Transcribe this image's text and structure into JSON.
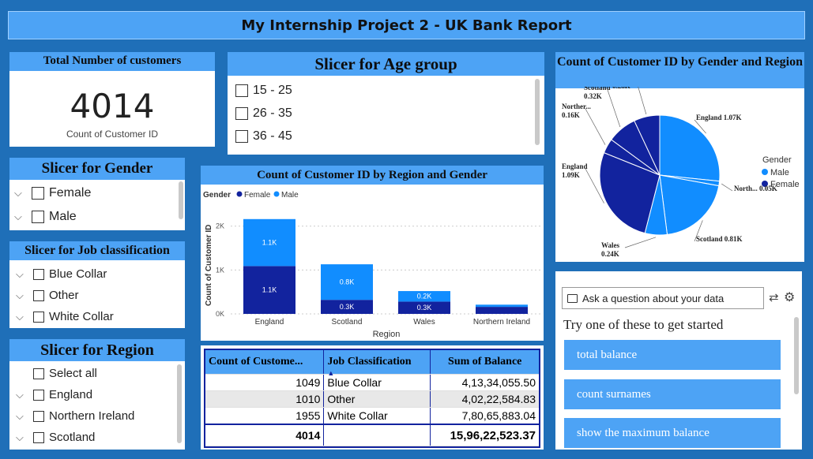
{
  "title": "My Internship Project 2 - UK Bank Report",
  "card": {
    "header": "Total Number of customers",
    "value": "4014",
    "label": "Count of Customer ID"
  },
  "age_slicer": {
    "header": "Slicer for Age group",
    "items": [
      "15 - 25",
      "26 - 35",
      "36 - 45"
    ]
  },
  "gender_slicer": {
    "header": "Slicer for Gender",
    "items": [
      "Female",
      "Male"
    ]
  },
  "job_slicer": {
    "header": "Slicer for Job classification",
    "items": [
      "Blue Collar",
      "Other",
      "White Collar"
    ]
  },
  "region_slicer": {
    "header": "Slicer for Region",
    "items": [
      "Select all",
      "England",
      "Northern Ireland",
      "Scotland"
    ]
  },
  "bar_chart": {
    "title": "Count of Customer ID by Region and Gender",
    "legend_title": "Gender",
    "ylabel": "Count of Customer ID",
    "xlabel": "Region",
    "y_ticks": [
      "2K",
      "1K",
      "0K"
    ],
    "colors": {
      "Female": "#12239e",
      "Male": "#118dff"
    }
  },
  "chart_data": [
    {
      "type": "bar",
      "title": "Count of Customer ID by Region and Gender",
      "xlabel": "Region",
      "ylabel": "Count of Customer ID",
      "categories": [
        "England",
        "Scotland",
        "Wales",
        "Northern Ireland"
      ],
      "series": [
        {
          "name": "Female",
          "values": [
            1090,
            320,
            280,
            160
          ],
          "labels": [
            "1.1K",
            "0.3K",
            "0.3K",
            ""
          ]
        },
        {
          "name": "Male",
          "values": [
            1070,
            810,
            240,
            50
          ],
          "labels": [
            "1.1K",
            "0.8K",
            "0.2K",
            ""
          ]
        }
      ],
      "ylim": [
        0,
        2300
      ],
      "legend": "top-left"
    },
    {
      "type": "pie",
      "title": "Count of Customer ID by Gender and Region",
      "slices": [
        {
          "label": "England",
          "gender": "Male",
          "value": 1070,
          "text": "England 1.07K"
        },
        {
          "label": "North...",
          "gender": "Male",
          "value": 50,
          "text": "North... 0.05K"
        },
        {
          "label": "Scotland",
          "gender": "Male",
          "value": 810,
          "text": "Scotland 0.81K"
        },
        {
          "label": "Wales",
          "gender": "Male",
          "value": 240,
          "text": "Wales 0.24K"
        },
        {
          "label": "England",
          "gender": "Female",
          "value": 1090,
          "text": "England 1.09K"
        },
        {
          "label": "Norther...",
          "gender": "Female",
          "value": 160,
          "text": "Norther... 0.16K"
        },
        {
          "label": "Scotland",
          "gender": "Female",
          "value": 320,
          "text": "Scotland 0.32K"
        },
        {
          "label": "Wales",
          "gender": "Female",
          "value": 280,
          "text": "Wales 0.28K"
        }
      ],
      "legend_title": "Gender",
      "legend": [
        "Male",
        "Female"
      ]
    }
  ],
  "pie_chart": {
    "title": "Count of Customer ID by Gender and Region",
    "legend_title": "Gender",
    "legend_items": [
      "Male",
      "Female"
    ],
    "colors": {
      "Male": "#118dff",
      "Female": "#12239e"
    }
  },
  "table": {
    "headers": [
      "Count of Custome...",
      "Job Classification",
      "Sum of Balance"
    ],
    "rows": [
      [
        "1049",
        "Blue Collar",
        "4,13,34,055.50"
      ],
      [
        "1010",
        "Other",
        "4,02,22,584.83"
      ],
      [
        "1955",
        "White Collar",
        "7,80,65,883.04"
      ]
    ],
    "total": [
      "4014",
      "",
      "15,96,22,523.37"
    ]
  },
  "qa": {
    "placeholder": "Ask a question about your data",
    "prompt": "Try one of these to get started",
    "suggestions": [
      "total balance",
      "count surnames",
      "show the maximum balance"
    ]
  }
}
